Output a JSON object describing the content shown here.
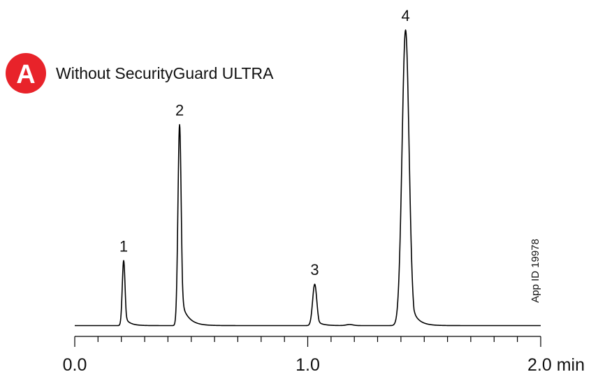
{
  "badge": {
    "letter": "A",
    "color": "#e8232a"
  },
  "chart_data": {
    "type": "line",
    "title": "Without SecurityGuard ULTRA",
    "xlabel": "",
    "ylabel": "",
    "xlim": [
      0.0,
      2.0
    ],
    "ylim": [
      0,
      100
    ],
    "x_unit": "min",
    "grid": false,
    "x_ticks": [
      {
        "value": 0.0,
        "label": "0.0"
      },
      {
        "value": 1.0,
        "label": "1.0"
      },
      {
        "value": 2.0,
        "label": "2.0 min"
      }
    ],
    "peaks": [
      {
        "label": "1",
        "retention_time": 0.21,
        "height": 22
      },
      {
        "label": "2",
        "retention_time": 0.45,
        "height": 68
      },
      {
        "label": "3",
        "retention_time": 1.03,
        "height": 14
      },
      {
        "label": "4",
        "retention_time": 1.42,
        "height": 100
      }
    ],
    "annotation": "App ID 19978",
    "line_color": "#000000"
  }
}
